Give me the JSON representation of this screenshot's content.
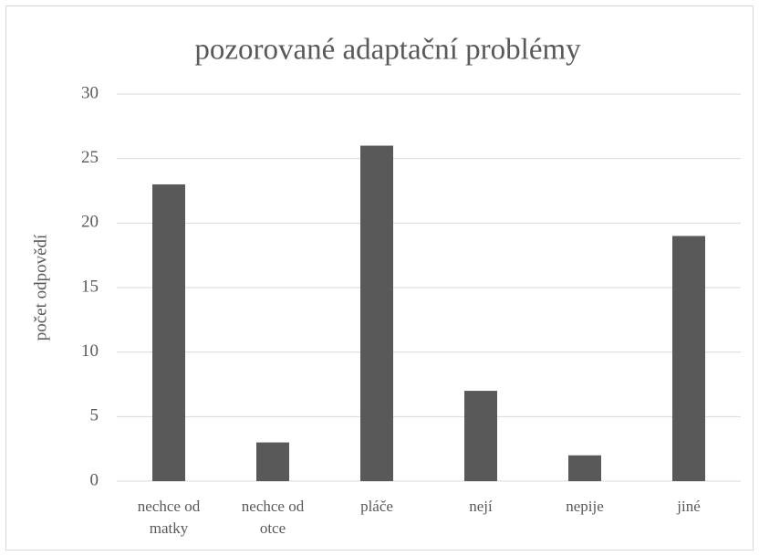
{
  "chart_data": {
    "type": "bar",
    "title": "pozorované adaptační problémy",
    "ylabel": "počet odpovědí",
    "categories": [
      "nechce od matky",
      "nechce od otce",
      "pláče",
      "nejí",
      "nepije",
      "jiné"
    ],
    "values": [
      23,
      3,
      26,
      7,
      2,
      19
    ],
    "color": "#595959",
    "ylim": [
      0,
      30
    ],
    "yticks": [
      0,
      5,
      10,
      15,
      20,
      25,
      30
    ],
    "grid": true
  }
}
